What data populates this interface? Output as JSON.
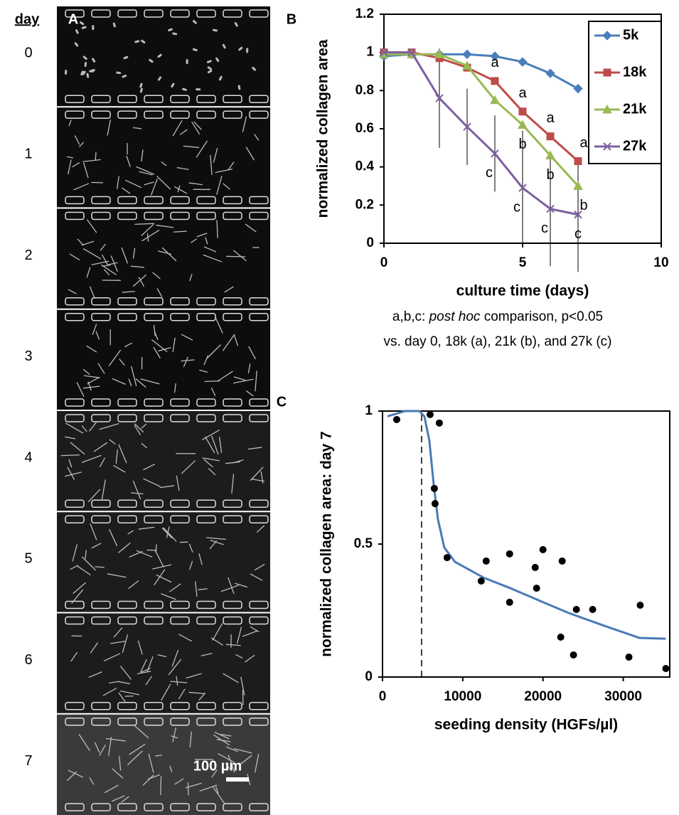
{
  "figure": {
    "day_header": "day",
    "days": [
      "0",
      "1",
      "2",
      "3",
      "4",
      "5",
      "6",
      "7"
    ],
    "panel_labels": [
      "A",
      "B",
      "C"
    ],
    "scale_bar": "100 µm"
  },
  "note": {
    "line1": [
      "a,b,c: ",
      "post hoc",
      " comparison, p<0.05"
    ],
    "line2": "vs. day 0, 18k (a), 21k (b), and 27k (c)"
  },
  "chart_data": [
    {
      "type": "line",
      "x_label": "culture time (days)",
      "y_label": "normalized collagen area",
      "x": [
        0,
        1,
        2,
        3,
        4,
        5,
        6,
        7
      ],
      "series": [
        {
          "name": "5k",
          "color": "#4a7ebb",
          "marker": "diamond",
          "values": [
            0.98,
            0.99,
            0.99,
            0.99,
            0.98,
            0.95,
            0.89,
            0.81
          ]
        },
        {
          "name": "18k",
          "color": "#be4b48",
          "marker": "square",
          "values": [
            1,
            1,
            0.97,
            0.92,
            0.85,
            0.69,
            0.56,
            0.43
          ],
          "annotations": [
            null,
            null,
            null,
            null,
            "a",
            "a",
            "a",
            "a"
          ]
        },
        {
          "name": "21k",
          "color": "#98b954",
          "marker": "triangle",
          "values": [
            0.99,
            0.99,
            0.99,
            0.93,
            0.75,
            0.62,
            0.46,
            0.3
          ],
          "annotations": [
            null,
            null,
            null,
            null,
            null,
            "b",
            "b",
            "b"
          ]
        },
        {
          "name": "27k",
          "color": "#7d60a0",
          "marker": "x",
          "values": [
            1,
            1,
            0.76,
            0.61,
            0.47,
            0.29,
            0.18,
            0.15
          ],
          "errors": [
            null,
            null,
            0.26,
            0.2,
            0.2,
            0.3,
            0.3,
            0.3
          ],
          "annotations": [
            null,
            null,
            null,
            null,
            "c",
            "c",
            "c",
            "c"
          ]
        }
      ],
      "xlim": [
        0,
        10
      ],
      "xticks": [
        0,
        5,
        10
      ],
      "ylim": [
        0,
        1.2
      ],
      "yticks": [
        0,
        0.2,
        0.4,
        0.6,
        0.8,
        1,
        1.2
      ],
      "legend": "upper right"
    },
    {
      "type": "scatter",
      "x_label": "seeding density (HGFs/µl)",
      "y_label": "normalized collagen area: day 7",
      "x": [
        1770,
        5930,
        7080,
        6460,
        6550,
        8050,
        12300,
        12920,
        15840,
        15840,
        19030,
        19200,
        20000,
        22390,
        22210,
        23800,
        24160,
        26190,
        30710,
        32120,
        35310
      ],
      "values": [
        0.968,
        0.987,
        0.955,
        0.709,
        0.652,
        0.449,
        0.361,
        0.436,
        0.463,
        0.281,
        0.412,
        0.334,
        0.479,
        0.436,
        0.15,
        0.083,
        0.254,
        0.254,
        0.075,
        0.27,
        0.032
      ],
      "color": "#000000",
      "fit": {
        "color": "#4a7ab5",
        "x": [
          620,
          2830,
          4600,
          5220,
          5840,
          6370,
          6900,
          7700,
          9030,
          12570,
          16100,
          19650,
          23190,
          27610,
          32040,
          35300
        ],
        "values": [
          0.98,
          1.0,
          1.0,
          0.98,
          0.888,
          0.727,
          0.594,
          0.487,
          0.433,
          0.374,
          0.332,
          0.286,
          0.241,
          0.193,
          0.147,
          0.144
        ]
      },
      "vline_x": 4870,
      "xlim": [
        0,
        35800
      ],
      "xticks": [
        0,
        10000,
        20000,
        30000
      ],
      "ylim": [
        0,
        1
      ],
      "yticks": [
        0,
        0.5,
        1
      ]
    }
  ]
}
